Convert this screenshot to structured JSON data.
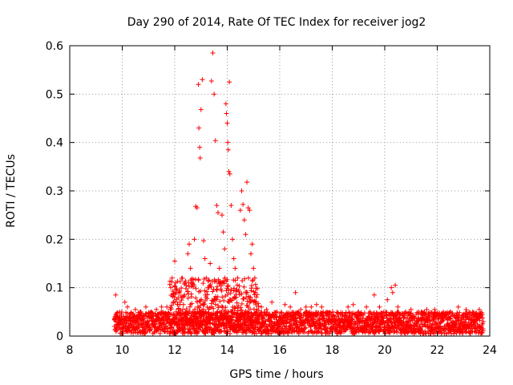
{
  "chart_data": {
    "type": "scatter",
    "title": "Day 290 of 2014, Rate Of TEC Index for receiver jog2",
    "xlabel": "GPS time / hours",
    "ylabel": "ROTI / TECUs",
    "xlim": [
      8,
      24
    ],
    "ylim": [
      0,
      0.6
    ],
    "xticks": [
      8,
      10,
      12,
      14,
      16,
      18,
      20,
      22,
      24
    ],
    "yticks": [
      0,
      0.1,
      0.2,
      0.3,
      0.4,
      0.5,
      0.6
    ],
    "xtick_labels": [
      "8",
      "10",
      "12",
      "14",
      "16",
      "18",
      "20",
      "22",
      "24"
    ],
    "ytick_labels": [
      "0",
      "0.1",
      "0.2",
      "0.3",
      "0.4",
      "0.5",
      "0.6"
    ],
    "grid": true,
    "marker": "+",
    "series": [
      {
        "name": "ROTI",
        "color": "#ff0000",
        "points": [
          [
            9.7,
            0.02
          ],
          [
            9.75,
            0.085
          ],
          [
            9.8,
            0.04
          ],
          [
            9.9,
            0.05
          ],
          [
            10.0,
            0.03
          ],
          [
            10.1,
            0.07
          ],
          [
            10.2,
            0.06
          ],
          [
            10.3,
            0.04
          ],
          [
            10.5,
            0.055
          ],
          [
            10.7,
            0.05
          ],
          [
            10.9,
            0.06
          ],
          [
            11.1,
            0.05
          ],
          [
            11.3,
            0.055
          ],
          [
            11.5,
            0.06
          ],
          [
            11.7,
            0.06
          ],
          [
            11.85,
            0.1
          ],
          [
            11.9,
            0.12
          ],
          [
            12.0,
            0.155
          ],
          [
            12.05,
            0.09
          ],
          [
            12.2,
            0.07
          ],
          [
            12.3,
            0.08
          ],
          [
            12.4,
            0.11
          ],
          [
            12.5,
            0.17
          ],
          [
            12.55,
            0.19
          ],
          [
            12.6,
            0.14
          ],
          [
            12.65,
            0.11
          ],
          [
            12.75,
            0.2
          ],
          [
            12.8,
            0.268
          ],
          [
            12.85,
            0.265
          ],
          [
            12.9,
            0.52
          ],
          [
            12.92,
            0.43
          ],
          [
            12.95,
            0.39
          ],
          [
            12.97,
            0.368
          ],
          [
            13.0,
            0.468
          ],
          [
            13.05,
            0.53
          ],
          [
            13.1,
            0.197
          ],
          [
            13.15,
            0.16
          ],
          [
            13.2,
            0.12
          ],
          [
            13.3,
            0.1
          ],
          [
            13.35,
            0.15
          ],
          [
            13.4,
            0.527
          ],
          [
            13.45,
            0.585
          ],
          [
            13.5,
            0.5
          ],
          [
            13.55,
            0.404
          ],
          [
            13.6,
            0.27
          ],
          [
            13.65,
            0.255
          ],
          [
            13.7,
            0.14
          ],
          [
            13.8,
            0.25
          ],
          [
            13.85,
            0.215
          ],
          [
            13.9,
            0.18
          ],
          [
            13.95,
            0.48
          ],
          [
            13.97,
            0.46
          ],
          [
            14.0,
            0.44
          ],
          [
            14.02,
            0.4
          ],
          [
            14.04,
            0.385
          ],
          [
            14.06,
            0.34
          ],
          [
            14.08,
            0.525
          ],
          [
            14.1,
            0.335
          ],
          [
            14.15,
            0.27
          ],
          [
            14.2,
            0.2
          ],
          [
            14.25,
            0.16
          ],
          [
            14.3,
            0.14
          ],
          [
            14.35,
            0.08
          ],
          [
            14.4,
            0.12
          ],
          [
            14.5,
            0.26
          ],
          [
            14.55,
            0.3
          ],
          [
            14.6,
            0.272
          ],
          [
            14.65,
            0.24
          ],
          [
            14.7,
            0.21
          ],
          [
            14.75,
            0.318
          ],
          [
            14.8,
            0.265
          ],
          [
            14.85,
            0.26
          ],
          [
            14.9,
            0.17
          ],
          [
            14.95,
            0.19
          ],
          [
            15.0,
            0.14
          ],
          [
            15.05,
            0.12
          ],
          [
            15.1,
            0.07
          ],
          [
            15.3,
            0.06
          ],
          [
            15.5,
            0.055
          ],
          [
            15.7,
            0.07
          ],
          [
            15.9,
            0.05
          ],
          [
            16.2,
            0.065
          ],
          [
            16.4,
            0.06
          ],
          [
            16.6,
            0.09
          ],
          [
            16.8,
            0.055
          ],
          [
            17.0,
            0.06
          ],
          [
            17.2,
            0.06
          ],
          [
            17.4,
            0.065
          ],
          [
            17.6,
            0.06
          ],
          [
            17.8,
            0.05
          ],
          [
            18.0,
            0.04
          ],
          [
            18.3,
            0.045
          ],
          [
            18.6,
            0.06
          ],
          [
            18.8,
            0.065
          ],
          [
            19.0,
            0.05
          ],
          [
            19.3,
            0.06
          ],
          [
            19.6,
            0.085
          ],
          [
            19.8,
            0.06
          ],
          [
            20.1,
            0.075
          ],
          [
            20.25,
            0.1
          ],
          [
            20.3,
            0.09
          ],
          [
            20.4,
            0.105
          ],
          [
            20.5,
            0.06
          ],
          [
            20.8,
            0.05
          ],
          [
            21.0,
            0.055
          ],
          [
            21.3,
            0.05
          ],
          [
            21.6,
            0.055
          ],
          [
            21.9,
            0.055
          ],
          [
            22.2,
            0.045
          ],
          [
            22.5,
            0.05
          ],
          [
            22.8,
            0.06
          ],
          [
            23.1,
            0.055
          ],
          [
            23.4,
            0.04
          ],
          [
            23.6,
            0.055
          ],
          [
            23.75,
            0.03
          ]
        ]
      }
    ]
  }
}
